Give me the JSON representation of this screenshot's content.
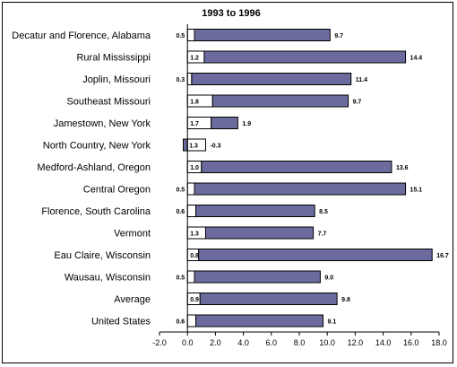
{
  "chart_data": {
    "type": "bar",
    "orientation": "horizontal",
    "title": "1993 to 1996",
    "xlabel": "",
    "ylabel": "",
    "xlim": [
      -2.0,
      18.0
    ],
    "xticks": [
      "-2.0",
      "0.0",
      "2.0",
      "4.0",
      "6.0",
      "8.0",
      "10.0",
      "12.0",
      "14.0",
      "16.0",
      "18.0"
    ],
    "grid": false,
    "categories": [
      "Decatur and Florence, Alabama",
      "Rural Mississippi",
      "Joplin, Missouri",
      "Southeast Missouri",
      "Jamestown, New York",
      "North Country, New York",
      "Medford-Ashland, Oregon",
      "Central Oregon",
      "Florence, South Carolina",
      "Vermont",
      "Eau Claire, Wisconsin",
      "Wausau, Wisconsin",
      "Average",
      "United States"
    ],
    "series": [
      {
        "values": [
          0.5,
          1.2,
          0.3,
          1.8,
          1.7,
          1.3,
          1.0,
          0.5,
          0.6,
          1.3,
          0.8,
          0.5,
          0.9,
          0.6
        ],
        "labels": [
          "0.5",
          "1.2",
          "0.3",
          "1.8",
          "1.7",
          "1.3",
          "1.0",
          "0.5",
          "0.6",
          "1.3",
          "0.8",
          "0.5",
          "0.9",
          "0.6"
        ],
        "color": "#ffffff"
      },
      {
        "values": [
          9.7,
          14.4,
          11.4,
          9.7,
          1.9,
          -0.3,
          13.6,
          15.1,
          8.5,
          7.7,
          16.7,
          9.0,
          9.8,
          9.1
        ],
        "labels": [
          "9.7",
          "14.4",
          "11.4",
          "9.7",
          "1.9",
          "-0.3",
          "13.6",
          "15.1",
          "8.5",
          "7.7",
          "16.7",
          "9.0",
          "9.8",
          "9.1"
        ],
        "color": "#6b6b9e"
      }
    ]
  }
}
